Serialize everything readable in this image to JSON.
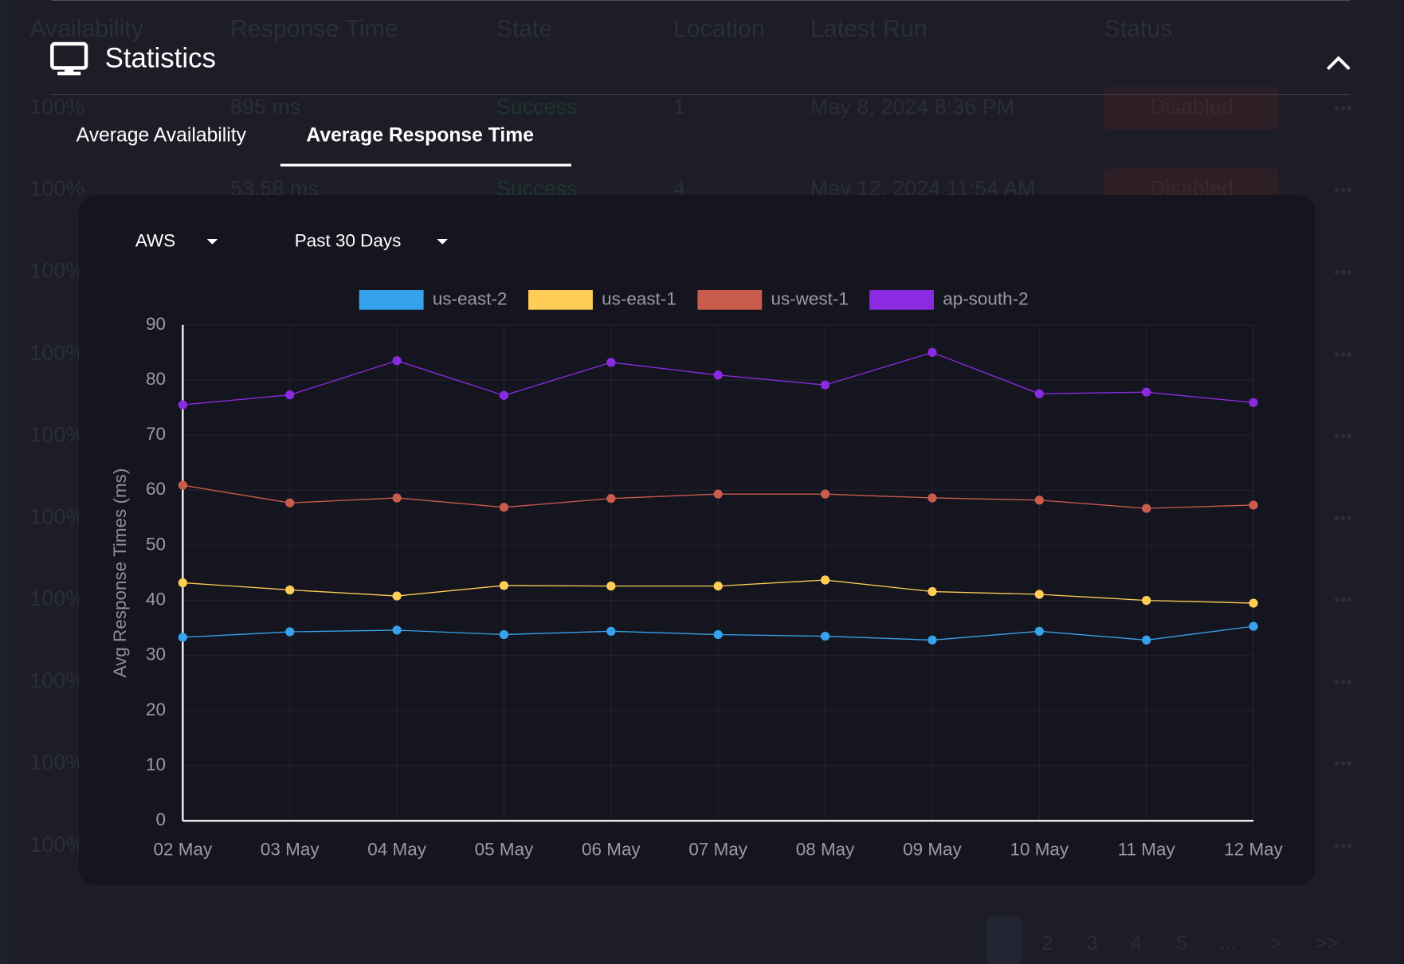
{
  "background_table": {
    "headers": [
      "Availability",
      "Response Time",
      "State",
      "Location",
      "Latest Run",
      "Status"
    ],
    "rows": [
      [
        "100%",
        "895 ms",
        "Success",
        "1",
        "May 8, 2024 8:36 PM",
        "Disabled"
      ],
      [
        "100%",
        "53.58 ms",
        "Success",
        "4",
        "May 12, 2024 11:54 AM",
        "Disabled"
      ],
      [
        "100%"
      ],
      [
        "100%"
      ],
      [
        "100%"
      ],
      [
        "100%"
      ],
      [
        "100%"
      ],
      [
        "100%"
      ],
      [
        "100%"
      ],
      [
        "100%"
      ]
    ],
    "pagination": [
      "2",
      "3",
      "4",
      "5",
      "...",
      ">",
      ">>"
    ]
  },
  "panel": {
    "title": "Statistics",
    "tabs": [
      "Average Availability",
      "Average Response Time"
    ],
    "filters": [
      "AWS",
      "Past 30 Days"
    ]
  },
  "chart_data": {
    "type": "line",
    "y_label": "Avg Response Times (ms)",
    "categories": [
      "02 May",
      "03 May",
      "04 May",
      "05 May",
      "06 May",
      "07 May",
      "08 May",
      "09 May",
      "10 May",
      "11 May",
      "12 May"
    ],
    "ylim": [
      0,
      90
    ],
    "yticks": [
      0,
      10,
      20,
      30,
      40,
      50,
      60,
      70,
      80,
      90
    ],
    "grid": true,
    "legend": "top",
    "series": [
      {
        "name": "us-east-2",
        "color": "#36a2eb",
        "values": [
          33.3,
          34.3,
          34.6,
          33.8,
          34.4,
          33.8,
          33.5,
          32.8,
          34.4,
          32.8,
          35.3
        ]
      },
      {
        "name": "us-east-1",
        "color": "#ffcd56",
        "values": [
          43.2,
          41.9,
          40.8,
          42.7,
          42.6,
          42.6,
          43.7,
          41.6,
          41.1,
          40.0,
          39.5
        ]
      },
      {
        "name": "us-west-1",
        "color": "#c95c4d",
        "values": [
          60.9,
          57.7,
          58.6,
          56.9,
          58.5,
          59.3,
          59.3,
          58.6,
          58.2,
          56.7,
          57.3
        ]
      },
      {
        "name": "ap-south-2",
        "color": "#8a2be2",
        "values": [
          75.5,
          77.3,
          83.5,
          77.2,
          83.2,
          80.9,
          79.1,
          85.0,
          77.5,
          77.8,
          75.9
        ]
      }
    ]
  }
}
